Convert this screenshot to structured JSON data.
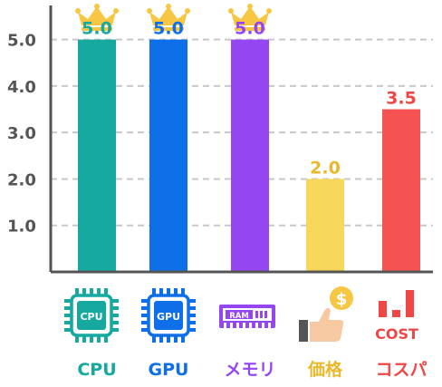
{
  "chart_data": {
    "type": "bar",
    "categories": [
      "CPU",
      "GPU",
      "メモリ",
      "価格",
      "コスパ"
    ],
    "values": [
      5.0,
      5.0,
      5.0,
      2.0,
      3.5
    ],
    "value_labels": [
      "5.0",
      "5.0",
      "5.0",
      "2.0",
      "3.5"
    ],
    "colors": [
      "#16a9a0",
      "#0f6fe8",
      "#9447f0",
      "#f6d75a",
      "#f55252"
    ],
    "label_colors": [
      "#16a9a0",
      "#0f6fe8",
      "#9447f0",
      "#e9b82c",
      "#f04646"
    ],
    "ytick_labels": [
      "1.0",
      "2.0",
      "3.0",
      "4.0",
      "5.0"
    ],
    "ylim": [
      0,
      5.5
    ],
    "grid": true,
    "top_marker": "crown-icon",
    "category_icons": [
      "cpu-chip-icon",
      "gpu-chip-icon",
      "ram-module-icon",
      "price-thumbs-up-coin-icon",
      "cost-bars-icon"
    ],
    "icon_texts": {
      "cpu": "CPU",
      "gpu": "GPU",
      "ram": "RAM",
      "coin": "$",
      "cost": "COST"
    },
    "crown_color": "#f7c744"
  }
}
